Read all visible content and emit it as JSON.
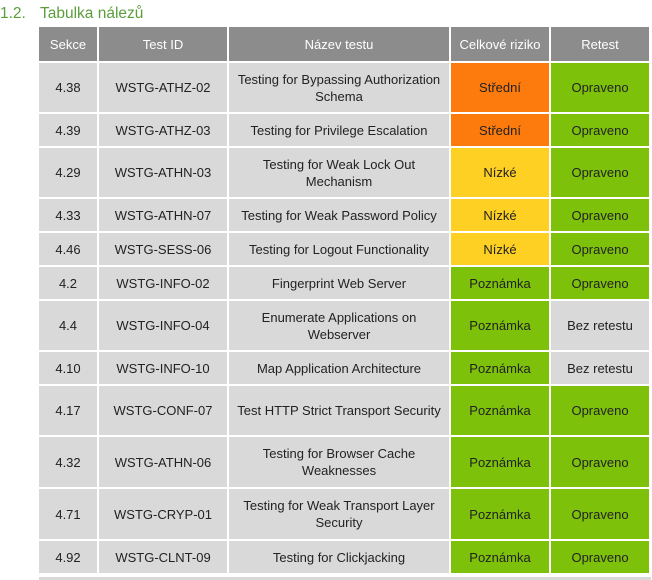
{
  "section": {
    "number": "1.2.",
    "title": "Tabulka nálezů"
  },
  "table": {
    "headers": {
      "section": "Sekce",
      "test_id": "Test ID",
      "test_name": "Název testu",
      "risk": "Celkové riziko",
      "retest": "Retest"
    },
    "rows": [
      {
        "section": "4.38",
        "test_id": "WSTG-ATHZ-02",
        "test_name": "Testing for Bypassing Authorization Schema",
        "risk": "Střední",
        "risk_level": "stredni",
        "retest": "Opraveno",
        "retest_state": "opraveno"
      },
      {
        "section": "4.39",
        "test_id": "WSTG-ATHZ-03",
        "test_name": "Testing for Privilege Escalation",
        "risk": "Střední",
        "risk_level": "stredni",
        "retest": "Opraveno",
        "retest_state": "opraveno"
      },
      {
        "section": "4.29",
        "test_id": "WSTG-ATHN-03",
        "test_name": "Testing for Weak Lock Out Mechanism",
        "risk": "Nízké",
        "risk_level": "nizke",
        "retest": "Opraveno",
        "retest_state": "opraveno"
      },
      {
        "section": "4.33",
        "test_id": "WSTG-ATHN-07",
        "test_name": "Testing for Weak Password Policy",
        "risk": "Nízké",
        "risk_level": "nizke",
        "retest": "Opraveno",
        "retest_state": "opraveno"
      },
      {
        "section": "4.46",
        "test_id": "WSTG-SESS-06",
        "test_name": "Testing for Logout Functionality",
        "risk": "Nízké",
        "risk_level": "nizke",
        "retest": "Opraveno",
        "retest_state": "opraveno"
      },
      {
        "section": "4.2",
        "test_id": "WSTG-INFO-02",
        "test_name": "Fingerprint Web Server",
        "risk": "Poznámka",
        "risk_level": "poznamka",
        "retest": "Opraveno",
        "retest_state": "opraveno"
      },
      {
        "section": "4.4",
        "test_id": "WSTG-INFO-04",
        "test_name": "Enumerate Applications on Webserver",
        "risk": "Poznámka",
        "risk_level": "poznamka",
        "retest": "Bez retestu",
        "retest_state": "bez"
      },
      {
        "section": "4.10",
        "test_id": "WSTG-INFO-10",
        "test_name": "Map Application Architecture",
        "risk": "Poznámka",
        "risk_level": "poznamka",
        "retest": "Bez retestu",
        "retest_state": "bez"
      },
      {
        "section": "4.17",
        "test_id": "WSTG-CONF-07",
        "test_name": "Test HTTP Strict Transport Security",
        "risk": "Poznámka",
        "risk_level": "poznamka",
        "retest": "Opraveno",
        "retest_state": "opraveno"
      },
      {
        "section": "4.32",
        "test_id": "WSTG-ATHN-06",
        "test_name": "Testing for Browser Cache Weaknesses",
        "risk": "Poznámka",
        "risk_level": "poznamka",
        "retest": "Opraveno",
        "retest_state": "opraveno"
      },
      {
        "section": "4.71",
        "test_id": "WSTG-CRYP-01",
        "test_name": "Testing for Weak Transport Layer Security",
        "risk": "Poznámka",
        "risk_level": "poznamka",
        "retest": "Opraveno",
        "retest_state": "opraveno"
      },
      {
        "section": "4.92",
        "test_id": "WSTG-CLNT-09",
        "test_name": "Testing for Clickjacking",
        "risk": "Poznámka",
        "risk_level": "poznamka",
        "retest": "Opraveno",
        "retest_state": "opraveno"
      }
    ]
  },
  "colors": {
    "header_bg": "#8c8c8c",
    "cell_bg": "#d9d9d9",
    "risk_stredni": "#fd7b0d",
    "risk_nizke": "#fdd023",
    "risk_poznamka": "#7dc10a",
    "retest_opraveno": "#7dc10a",
    "heading": "#5a9e3c"
  }
}
